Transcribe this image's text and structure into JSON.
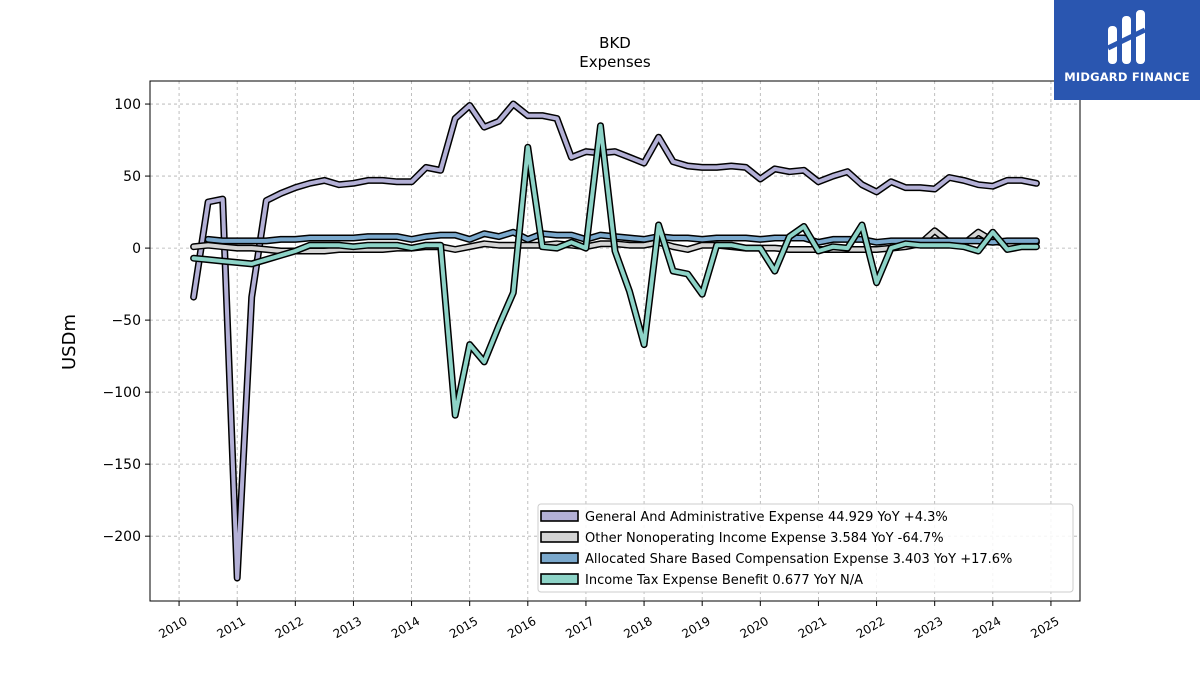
{
  "logo": {
    "text": "MIDGARD FINANCE",
    "icon": "midgard-logo-icon",
    "background": "#2a56b0"
  },
  "chart_data": {
    "type": "line",
    "title": "BKD",
    "subtitle": "Expenses",
    "ylabel": "USDm",
    "xlabel": "",
    "xlim": [
      2009.5,
      2025.5
    ],
    "ylim": [
      -245,
      116
    ],
    "x_ticks": [
      2010,
      2011,
      2012,
      2013,
      2014,
      2015,
      2016,
      2017,
      2018,
      2019,
      2020,
      2021,
      2022,
      2023,
      2024,
      2025
    ],
    "y_ticks": [
      100,
      50,
      0,
      -50,
      -100,
      -150,
      -200
    ],
    "y_tick_labels": [
      "100",
      "50",
      "0",
      "−50",
      "−100",
      "−150",
      "−200"
    ],
    "grid": true,
    "legend_position": "lower-right",
    "series": [
      {
        "name": "General And Administrative Expense",
        "legend": "General And Administrative Expense  44.929 YoY +4.3%",
        "color": "#b3b0d6",
        "points": [
          [
            2010.25,
            -34
          ],
          [
            2010.5,
            32
          ],
          [
            2010.75,
            34
          ],
          [
            2011.0,
            -229
          ],
          [
            2011.25,
            -34
          ],
          [
            2011.5,
            33
          ],
          [
            2011.75,
            38
          ],
          [
            2012.0,
            42
          ],
          [
            2012.25,
            45
          ],
          [
            2012.5,
            47
          ],
          [
            2012.75,
            44
          ],
          [
            2013.0,
            45
          ],
          [
            2013.25,
            47
          ],
          [
            2013.5,
            47
          ],
          [
            2013.75,
            46
          ],
          [
            2014.0,
            46
          ],
          [
            2014.25,
            56
          ],
          [
            2014.5,
            54
          ],
          [
            2014.75,
            90
          ],
          [
            2015.0,
            99
          ],
          [
            2015.25,
            84
          ],
          [
            2015.5,
            88
          ],
          [
            2015.75,
            100
          ],
          [
            2016.0,
            92
          ],
          [
            2016.25,
            92
          ],
          [
            2016.5,
            90
          ],
          [
            2016.75,
            63
          ],
          [
            2017.0,
            67
          ],
          [
            2017.25,
            66
          ],
          [
            2017.5,
            67
          ],
          [
            2017.75,
            63
          ],
          [
            2018.0,
            59
          ],
          [
            2018.25,
            77
          ],
          [
            2018.5,
            60
          ],
          [
            2018.75,
            57
          ],
          [
            2019.0,
            56
          ],
          [
            2019.25,
            56
          ],
          [
            2019.5,
            57
          ],
          [
            2019.75,
            56
          ],
          [
            2020.0,
            48
          ],
          [
            2020.25,
            55
          ],
          [
            2020.5,
            53
          ],
          [
            2020.75,
            54
          ],
          [
            2021.0,
            46
          ],
          [
            2021.25,
            50
          ],
          [
            2021.5,
            53
          ],
          [
            2021.75,
            44
          ],
          [
            2022.0,
            39
          ],
          [
            2022.25,
            46
          ],
          [
            2022.5,
            42
          ],
          [
            2022.75,
            42
          ],
          [
            2023.0,
            41
          ],
          [
            2023.25,
            49
          ],
          [
            2023.5,
            47
          ],
          [
            2023.75,
            44
          ],
          [
            2024.0,
            43
          ],
          [
            2024.25,
            47
          ],
          [
            2024.5,
            47
          ],
          [
            2024.75,
            45
          ]
        ]
      },
      {
        "name": "Other Nonoperating Income Expense",
        "legend": "Other Nonoperating Income Expense  3.584 YoY -64.7%",
        "color": "#d4d4d4",
        "points": [
          [
            2010.25,
            1
          ],
          [
            2010.5,
            2
          ],
          [
            2010.75,
            1
          ],
          [
            2011.0,
            0
          ],
          [
            2011.25,
            0
          ],
          [
            2011.5,
            -1
          ],
          [
            2011.75,
            -2
          ],
          [
            2012.0,
            -2
          ],
          [
            2012.25,
            -2
          ],
          [
            2012.5,
            -2
          ],
          [
            2012.75,
            -1
          ],
          [
            2013.0,
            -1
          ],
          [
            2013.25,
            -1
          ],
          [
            2013.5,
            -1
          ],
          [
            2013.75,
            0
          ],
          [
            2014.0,
            0
          ],
          [
            2014.25,
            1
          ],
          [
            2014.5,
            1
          ],
          [
            2014.75,
            -1
          ],
          [
            2015.0,
            1
          ],
          [
            2015.25,
            3
          ],
          [
            2015.5,
            2
          ],
          [
            2015.75,
            2
          ],
          [
            2016.0,
            2
          ],
          [
            2016.25,
            2
          ],
          [
            2016.5,
            3
          ],
          [
            2016.75,
            2
          ],
          [
            2017.0,
            1
          ],
          [
            2017.25,
            3
          ],
          [
            2017.5,
            3
          ],
          [
            2017.75,
            2
          ],
          [
            2018.0,
            2
          ],
          [
            2018.25,
            4
          ],
          [
            2018.5,
            1
          ],
          [
            2018.75,
            -1
          ],
          [
            2019.0,
            2
          ],
          [
            2019.25,
            2
          ],
          [
            2019.5,
            1
          ],
          [
            2019.75,
            0
          ],
          [
            2020.0,
            0
          ],
          [
            2020.25,
            0
          ],
          [
            2020.5,
            -1
          ],
          [
            2020.75,
            -1
          ],
          [
            2021.0,
            -1
          ],
          [
            2021.25,
            -1
          ],
          [
            2021.5,
            -1
          ],
          [
            2021.75,
            -1
          ],
          [
            2022.0,
            -1
          ],
          [
            2022.25,
            0
          ],
          [
            2022.5,
            1
          ],
          [
            2022.75,
            3
          ],
          [
            2023.0,
            12
          ],
          [
            2023.25,
            4
          ],
          [
            2023.5,
            3
          ],
          [
            2023.75,
            11
          ],
          [
            2024.0,
            5
          ],
          [
            2024.25,
            3
          ],
          [
            2024.5,
            2
          ],
          [
            2024.75,
            4
          ]
        ]
      },
      {
        "name": "Allocated Share Based Compensation Expense",
        "legend": "Allocated Share Based Compensation Expense  3.403 YoY +17.6%",
        "color": "#7aa8cc",
        "points": [
          [
            2010.5,
            6
          ],
          [
            2010.75,
            5
          ],
          [
            2011.0,
            5
          ],
          [
            2011.25,
            5
          ],
          [
            2011.5,
            5
          ],
          [
            2011.75,
            6
          ],
          [
            2012.0,
            6
          ],
          [
            2012.25,
            7
          ],
          [
            2012.5,
            7
          ],
          [
            2012.75,
            7
          ],
          [
            2013.0,
            7
          ],
          [
            2013.25,
            8
          ],
          [
            2013.5,
            8
          ],
          [
            2013.75,
            8
          ],
          [
            2014.0,
            6
          ],
          [
            2014.25,
            8
          ],
          [
            2014.5,
            9
          ],
          [
            2014.75,
            9
          ],
          [
            2015.0,
            6
          ],
          [
            2015.25,
            10
          ],
          [
            2015.5,
            8
          ],
          [
            2015.75,
            11
          ],
          [
            2016.0,
            6
          ],
          [
            2016.25,
            10
          ],
          [
            2016.5,
            9
          ],
          [
            2016.75,
            9
          ],
          [
            2017.0,
            6
          ],
          [
            2017.25,
            9
          ],
          [
            2017.5,
            8
          ],
          [
            2017.75,
            7
          ],
          [
            2018.0,
            6
          ],
          [
            2018.25,
            8
          ],
          [
            2018.5,
            7
          ],
          [
            2018.75,
            7
          ],
          [
            2019.0,
            6
          ],
          [
            2019.25,
            7
          ],
          [
            2019.5,
            7
          ],
          [
            2019.75,
            7
          ],
          [
            2020.0,
            6
          ],
          [
            2020.25,
            7
          ],
          [
            2020.5,
            7
          ],
          [
            2020.75,
            7
          ],
          [
            2021.0,
            4
          ],
          [
            2021.25,
            6
          ],
          [
            2021.5,
            6
          ],
          [
            2021.75,
            6
          ],
          [
            2022.0,
            4
          ],
          [
            2022.25,
            5
          ],
          [
            2022.5,
            5
          ],
          [
            2022.75,
            5
          ],
          [
            2023.0,
            5
          ],
          [
            2023.25,
            5
          ],
          [
            2023.5,
            5
          ],
          [
            2023.75,
            5
          ],
          [
            2024.0,
            4
          ],
          [
            2024.25,
            5
          ],
          [
            2024.5,
            5
          ],
          [
            2024.75,
            5
          ]
        ]
      },
      {
        "name": "Income Tax Expense Benefit",
        "legend": "Income Tax Expense Benefit  0.677 YoY N/A",
        "color": "#8dd3c7",
        "points": [
          [
            2010.25,
            -7
          ],
          [
            2010.5,
            -8
          ],
          [
            2010.75,
            -9
          ],
          [
            2011.0,
            -10
          ],
          [
            2011.25,
            -11
          ],
          [
            2011.5,
            -8
          ],
          [
            2011.75,
            -5
          ],
          [
            2012.0,
            -2
          ],
          [
            2012.25,
            2
          ],
          [
            2012.5,
            2
          ],
          [
            2012.75,
            2
          ],
          [
            2013.0,
            1
          ],
          [
            2013.25,
            2
          ],
          [
            2013.5,
            2
          ],
          [
            2013.75,
            2
          ],
          [
            2014.0,
            0
          ],
          [
            2014.25,
            2
          ],
          [
            2014.5,
            2
          ],
          [
            2014.75,
            -116
          ],
          [
            2015.0,
            -67
          ],
          [
            2015.25,
            -79
          ],
          [
            2015.5,
            -54
          ],
          [
            2015.75,
            -31
          ],
          [
            2016.0,
            70
          ],
          [
            2016.25,
            1
          ],
          [
            2016.5,
            0
          ],
          [
            2016.75,
            4
          ],
          [
            2017.0,
            0
          ],
          [
            2017.25,
            85
          ],
          [
            2017.5,
            -2
          ],
          [
            2017.75,
            -30
          ],
          [
            2018.0,
            -67
          ],
          [
            2018.25,
            16
          ],
          [
            2018.5,
            -16
          ],
          [
            2018.75,
            -18
          ],
          [
            2019.0,
            -32
          ],
          [
            2019.25,
            2
          ],
          [
            2019.5,
            2
          ],
          [
            2019.75,
            0
          ],
          [
            2020.0,
            0
          ],
          [
            2020.25,
            -16
          ],
          [
            2020.5,
            8
          ],
          [
            2020.75,
            15
          ],
          [
            2021.0,
            -2
          ],
          [
            2021.25,
            1
          ],
          [
            2021.5,
            0
          ],
          [
            2021.75,
            16
          ],
          [
            2022.0,
            -24
          ],
          [
            2022.25,
            0
          ],
          [
            2022.5,
            3
          ],
          [
            2022.75,
            2
          ],
          [
            2023.0,
            2
          ],
          [
            2023.25,
            2
          ],
          [
            2023.5,
            1
          ],
          [
            2023.75,
            -2
          ],
          [
            2024.0,
            11
          ],
          [
            2024.25,
            -1
          ],
          [
            2024.5,
            1
          ],
          [
            2024.75,
            1
          ]
        ]
      }
    ]
  }
}
